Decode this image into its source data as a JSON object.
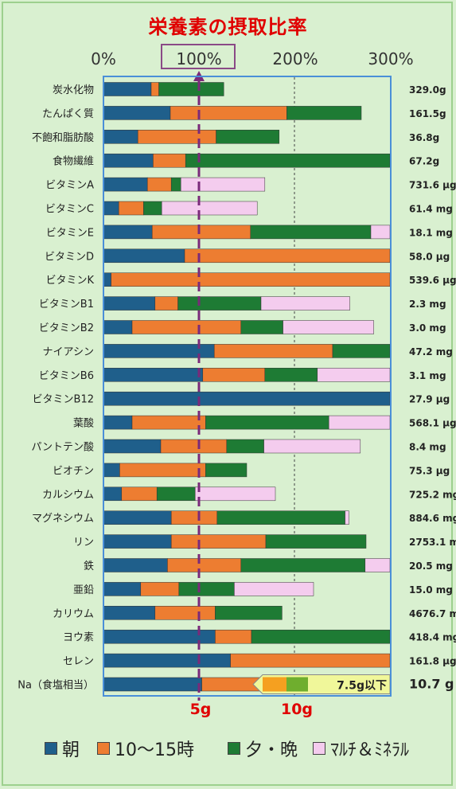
{
  "title": "栄養素の摂取比率",
  "percent_labels": [
    "0%",
    "100%",
    "200%",
    "300%"
  ],
  "gram_labels": [
    "5g",
    "10g"
  ],
  "na_limit_label": "7.5g以下",
  "legend": [
    {
      "label": "朝",
      "color": "#1f5f8b"
    },
    {
      "label": "10～15時",
      "color": "#ed7d31"
    },
    {
      "label": "夕・晩",
      "color": "#1e7b34"
    },
    {
      "label": "ﾏﾙﾁ＆ﾐﾈﾗﾙ",
      "color": "#f4ccee"
    }
  ],
  "chart_data": {
    "type": "bar",
    "orientation": "horizontal",
    "stacked": true,
    "xlim": [
      0,
      300
    ],
    "x_ticks": [
      0,
      100,
      200,
      300
    ],
    "reference_line": 100,
    "series_names": [
      "朝",
      "10～15時",
      "夕・晩",
      "ﾏﾙﾁ＆ﾐﾈﾗﾙ"
    ],
    "categories": [
      {
        "name": "炭水化物",
        "amount": "329.0g",
        "values": [
          50,
          8,
          68,
          0
        ]
      },
      {
        "name": "たんぱく質",
        "amount": "161.5g",
        "values": [
          70,
          122,
          78,
          0
        ]
      },
      {
        "name": "不飽和脂肪酸",
        "amount": "36.8g",
        "values": [
          36,
          82,
          66,
          0
        ]
      },
      {
        "name": "食物繊維",
        "amount": "67.2g",
        "values": [
          52,
          34,
          214,
          0
        ]
      },
      {
        "name": "ビタミンA",
        "amount": "731.6 μg",
        "values": [
          46,
          25,
          10,
          88
        ]
      },
      {
        "name": "ビタミンC",
        "amount": "61.4 mg",
        "values": [
          16,
          26,
          19,
          100
        ]
      },
      {
        "name": "ビタミンE",
        "amount": "18.1 mg",
        "values": [
          51,
          103,
          126,
          20
        ]
      },
      {
        "name": "ビタミンD",
        "amount": "58.0 μg",
        "values": [
          85,
          215,
          0,
          0
        ]
      },
      {
        "name": "ビタミンK",
        "amount": "539.6 μg",
        "values": [
          8,
          292,
          0,
          0
        ]
      },
      {
        "name": "ビタミンB1",
        "amount": "2.3 mg",
        "values": [
          54,
          24,
          87,
          93
        ]
      },
      {
        "name": "ビタミンB2",
        "amount": "3.0 mg",
        "values": [
          30,
          114,
          44,
          95
        ]
      },
      {
        "name": "ナイアシン",
        "amount": "47.2 mg",
        "values": [
          116,
          124,
          60,
          0
        ]
      },
      {
        "name": "ビタミンB6",
        "amount": "3.1 mg",
        "values": [
          104,
          65,
          55,
          76
        ]
      },
      {
        "name": "ビタミンB12",
        "amount": "27.9 μg",
        "values": [
          300,
          0,
          0,
          0
        ]
      },
      {
        "name": "葉酸",
        "amount": "568.1 μg",
        "values": [
          30,
          77,
          129,
          64
        ]
      },
      {
        "name": "パントテン酸",
        "amount": "8.4 mg",
        "values": [
          60,
          69,
          39,
          101
        ]
      },
      {
        "name": "ビオチン",
        "amount": "75.3 μg",
        "values": [
          17,
          90,
          43,
          0
        ]
      },
      {
        "name": "カルシウム",
        "amount": "725.2 mg",
        "values": [
          19,
          37,
          40,
          84
        ]
      },
      {
        "name": "マグネシウム",
        "amount": "884.6 mg",
        "values": [
          71,
          48,
          134,
          4
        ]
      },
      {
        "name": "リン",
        "amount": "2753.1 mg",
        "values": [
          71,
          99,
          105,
          0
        ]
      },
      {
        "name": "鉄",
        "amount": "20.5 mg",
        "values": [
          67,
          77,
          130,
          26
        ]
      },
      {
        "name": "亜鉛",
        "amount": "15.0 mg",
        "values": [
          39,
          40,
          58,
          83
        ]
      },
      {
        "name": "カリウム",
        "amount": "4676.7 mg",
        "values": [
          54,
          63,
          70,
          0
        ]
      },
      {
        "name": "ヨウ素",
        "amount": "418.4 mg",
        "values": [
          117,
          38,
          145,
          0
        ]
      },
      {
        "name": "セレン",
        "amount": "161.8 μg",
        "values": [
          133,
          167,
          0,
          0
        ]
      },
      {
        "name": "Na（食塩相当）",
        "amount": "10.7 g",
        "values": [
          103,
          197,
          0,
          0
        ]
      }
    ]
  }
}
